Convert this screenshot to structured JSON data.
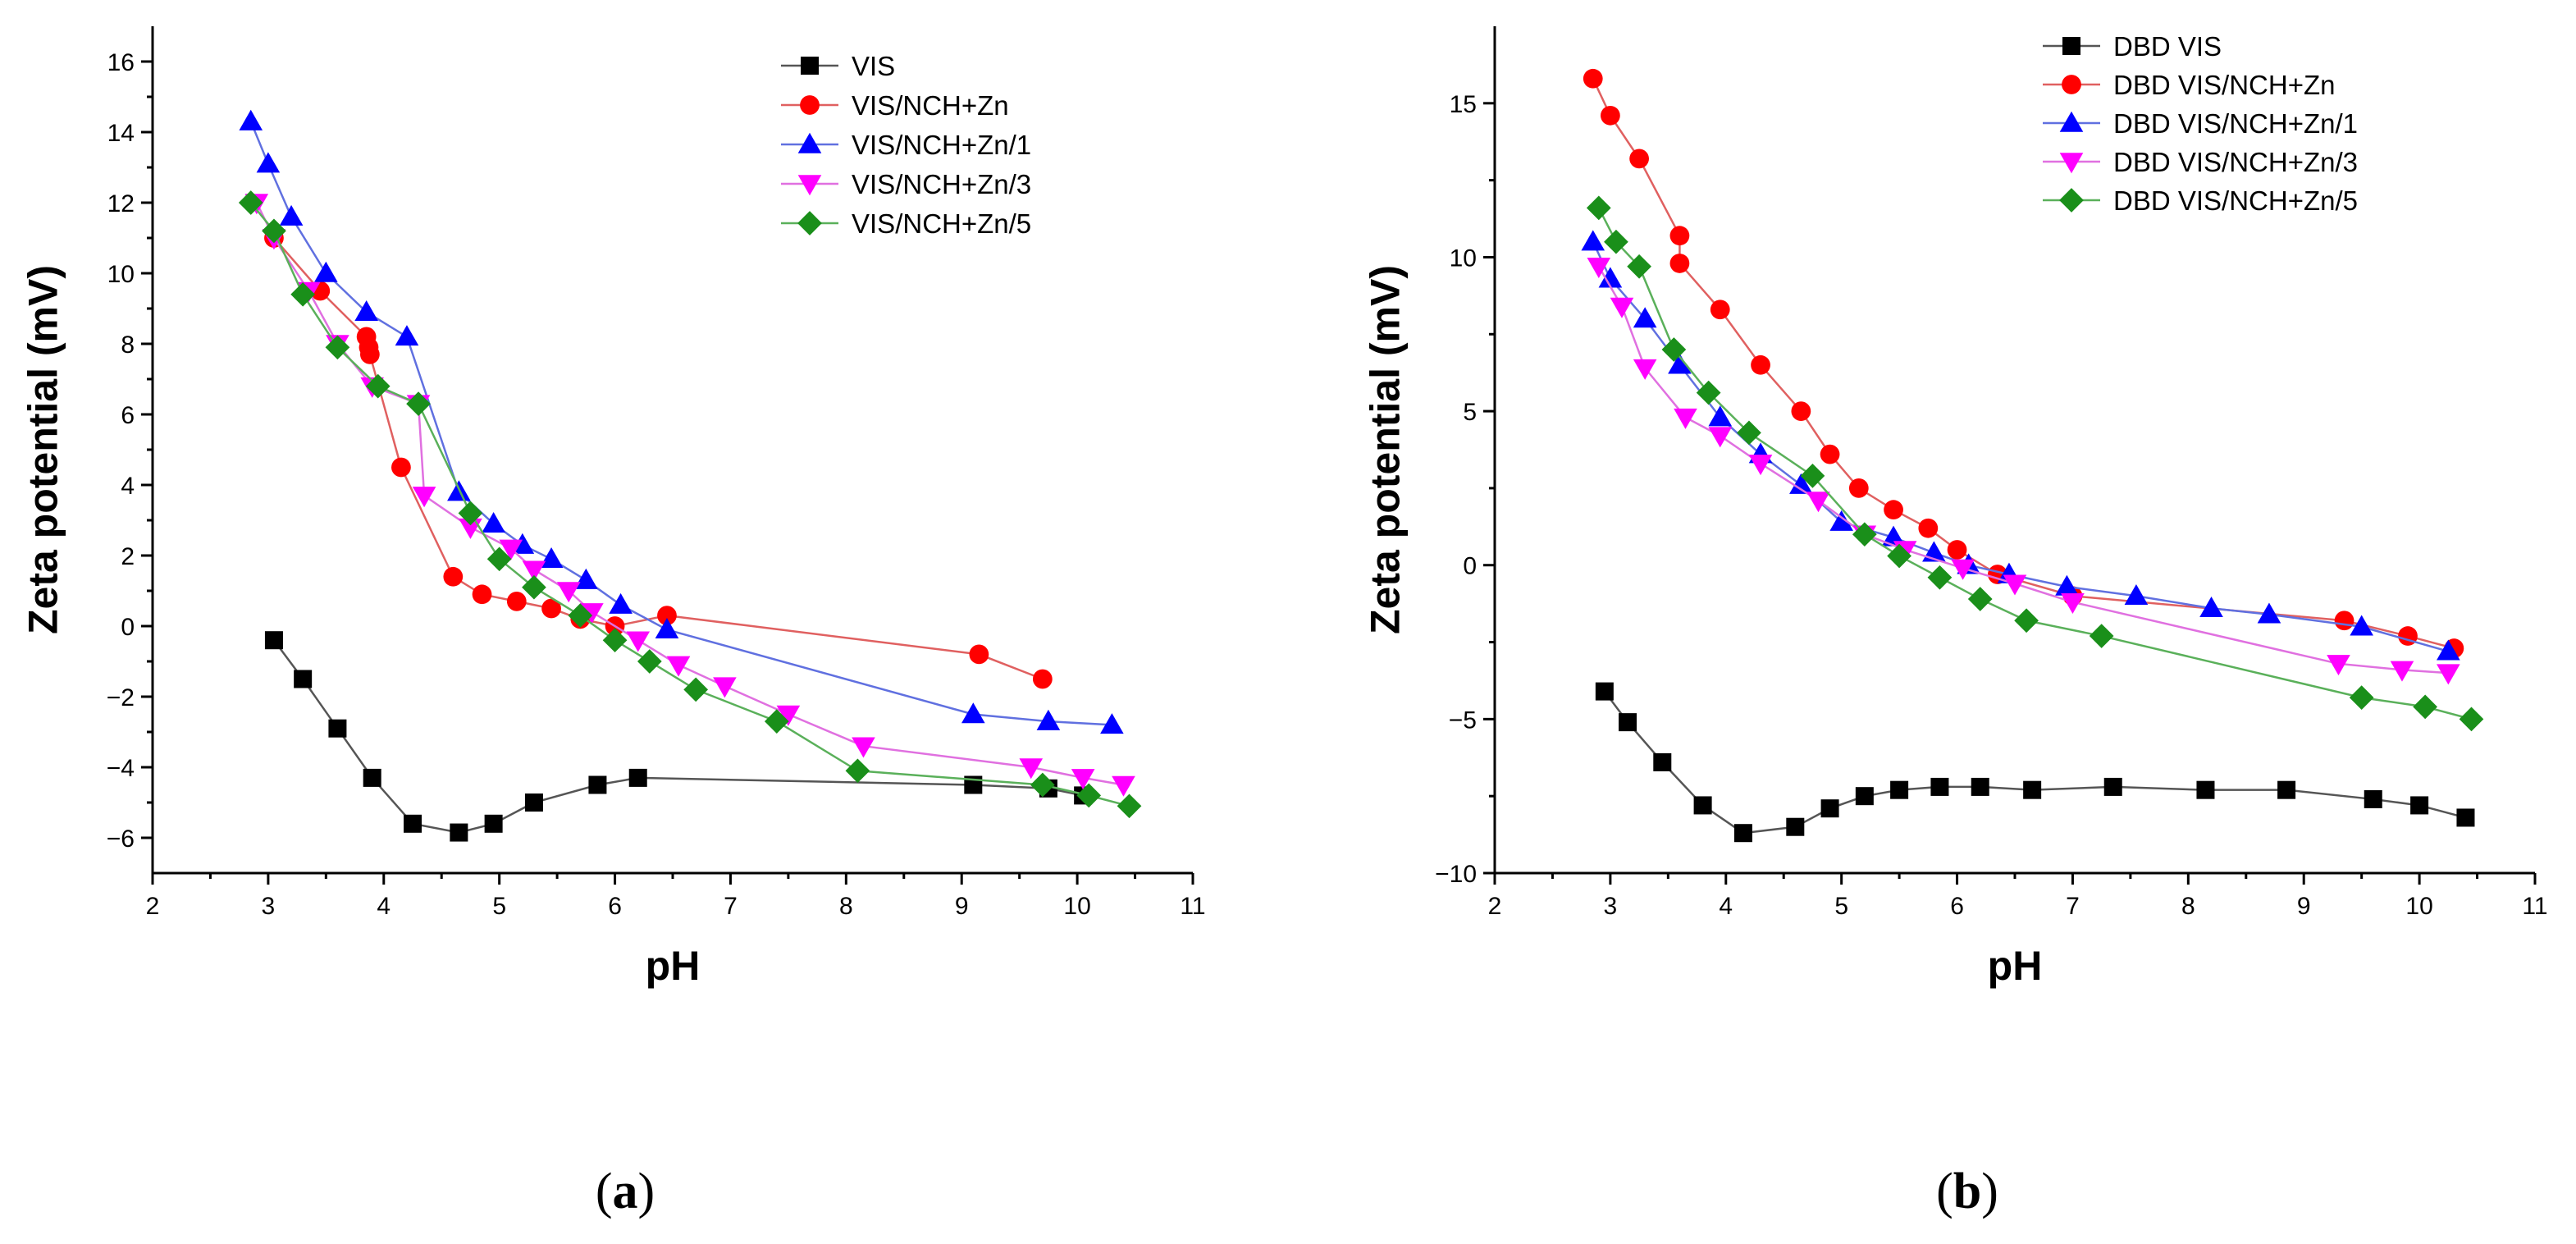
{
  "chart_data": [
    {
      "type": "line",
      "panel_label": {
        "open": "(",
        "letter": "a",
        "close": ")"
      },
      "xlabel": "pH",
      "ylabel": "Zeta potential (mV)",
      "xlim": [
        2,
        11
      ],
      "ylim": [
        -7,
        17
      ],
      "xticks": [
        2,
        3,
        4,
        5,
        6,
        7,
        8,
        9,
        10,
        11
      ],
      "yticks": [
        -6,
        -4,
        -2,
        0,
        2,
        4,
        6,
        8,
        10,
        12,
        14,
        16
      ],
      "legend_position": "top-right",
      "series": [
        {
          "name": "VIS",
          "color": "#000000",
          "line_color": "#555555",
          "marker": "square",
          "x": [
            3.05,
            3.3,
            3.6,
            3.9,
            4.25,
            4.65,
            4.95,
            5.3,
            5.85,
            6.2,
            9.1,
            9.75,
            10.05
          ],
          "y": [
            -0.4,
            -1.5,
            -2.9,
            -4.3,
            -5.6,
            -5.85,
            -5.6,
            -5.0,
            -4.5,
            -4.3,
            -4.5,
            -4.6,
            -4.8
          ]
        },
        {
          "name": "VIS/NCH+Zn",
          "color": "#ff0000",
          "line_color": "#e06060",
          "marker": "circle",
          "x": [
            3.05,
            3.45,
            3.85,
            3.87,
            3.88,
            4.15,
            4.6,
            4.85,
            5.15,
            5.45,
            5.7,
            6.0,
            6.45,
            9.15,
            9.7
          ],
          "y": [
            11.0,
            9.5,
            8.2,
            7.9,
            7.7,
            4.5,
            1.4,
            0.9,
            0.7,
            0.5,
            0.2,
            0.0,
            0.3,
            -0.8,
            -1.5
          ]
        },
        {
          "name": "VIS/NCH+Zn/1",
          "color": "#0000ff",
          "line_color": "#6070e0",
          "marker": "triangle-up",
          "x": [
            2.85,
            3.0,
            3.2,
            3.5,
            3.85,
            4.2,
            4.65,
            4.95,
            5.2,
            5.45,
            5.75,
            6.05,
            6.45,
            9.1,
            9.75,
            10.3
          ],
          "y": [
            14.3,
            13.1,
            11.6,
            10.0,
            8.9,
            8.2,
            3.8,
            2.9,
            2.3,
            1.9,
            1.3,
            0.6,
            -0.1,
            -2.5,
            -2.7,
            -2.8
          ]
        },
        {
          "name": "VIS/NCH+Zn/3",
          "color": "#ff00ff",
          "line_color": "#e070e0",
          "marker": "triangle-down",
          "x": [
            2.9,
            3.05,
            3.35,
            3.6,
            3.9,
            4.3,
            4.35,
            4.75,
            5.1,
            5.3,
            5.6,
            5.8,
            6.2,
            6.55,
            6.95,
            7.5,
            8.15,
            9.6,
            10.05,
            10.4
          ],
          "y": [
            12.0,
            11.0,
            9.5,
            8.0,
            6.8,
            6.3,
            3.7,
            2.8,
            2.2,
            1.6,
            1.0,
            0.4,
            -0.4,
            -1.1,
            -1.7,
            -2.5,
            -3.4,
            -4.0,
            -4.3,
            -4.5
          ]
        },
        {
          "name": "VIS/NCH+Zn/5",
          "color": "#1a8f1a",
          "line_color": "#5ab05a",
          "marker": "diamond",
          "x": [
            2.85,
            3.05,
            3.3,
            3.6,
            3.95,
            4.3,
            4.75,
            5.0,
            5.3,
            5.7,
            6.0,
            6.3,
            6.7,
            7.4,
            8.1,
            9.7,
            10.1,
            10.45
          ],
          "y": [
            12.0,
            11.2,
            9.4,
            7.9,
            6.8,
            6.3,
            3.2,
            1.9,
            1.1,
            0.3,
            -0.4,
            -1.0,
            -1.8,
            -2.7,
            -4.1,
            -4.5,
            -4.8,
            -5.1
          ]
        }
      ]
    },
    {
      "type": "line",
      "panel_label": {
        "open": "(",
        "letter": "b",
        "close": ")"
      },
      "xlabel": "pH",
      "ylabel": "Zeta potential (mV)",
      "xlim": [
        2,
        11
      ],
      "ylim": [
        -10,
        17.5
      ],
      "xticks": [
        2,
        3,
        4,
        5,
        6,
        7,
        8,
        9,
        10,
        11
      ],
      "yticks": [
        -10,
        -5,
        0,
        5,
        10,
        15
      ],
      "legend_position": "top-right",
      "series": [
        {
          "name": "DBD VIS",
          "color": "#000000",
          "line_color": "#555555",
          "marker": "square",
          "x": [
            2.95,
            3.15,
            3.45,
            3.8,
            4.15,
            4.6,
            4.9,
            5.2,
            5.5,
            5.85,
            6.2,
            6.65,
            7.35,
            8.15,
            8.85,
            9.6,
            10.0,
            10.4
          ],
          "y": [
            -4.1,
            -5.1,
            -6.4,
            -7.8,
            -8.7,
            -8.5,
            -7.9,
            -7.5,
            -7.3,
            -7.2,
            -7.2,
            -7.3,
            -7.2,
            -7.3,
            -7.3,
            -7.6,
            -7.8,
            -8.2
          ]
        },
        {
          "name": "DBD VIS/NCH+Zn",
          "color": "#ff0000",
          "line_color": "#e06060",
          "marker": "circle",
          "x": [
            2.85,
            3.0,
            3.25,
            3.6,
            3.6,
            3.95,
            4.3,
            4.65,
            4.9,
            5.15,
            5.45,
            5.75,
            6.0,
            6.35,
            7.0,
            9.35,
            9.9,
            10.3
          ],
          "y": [
            15.8,
            14.6,
            13.2,
            10.7,
            9.8,
            8.3,
            6.5,
            5.0,
            3.6,
            2.5,
            1.8,
            1.2,
            0.5,
            -0.3,
            -1.0,
            -1.8,
            -2.3,
            -2.7
          ]
        },
        {
          "name": "DBD VIS/NCH+Zn/1",
          "color": "#0000ff",
          "line_color": "#6070e0",
          "marker": "triangle-up",
          "x": [
            2.85,
            3.0,
            3.3,
            3.6,
            3.95,
            4.3,
            4.65,
            5.0,
            5.45,
            5.8,
            6.1,
            6.45,
            6.95,
            7.55,
            8.2,
            8.7,
            9.5,
            10.25
          ],
          "y": [
            10.5,
            9.3,
            8.0,
            6.5,
            4.8,
            3.6,
            2.6,
            1.4,
            0.9,
            0.4,
            0.0,
            -0.3,
            -0.7,
            -1.0,
            -1.4,
            -1.6,
            -2.0,
            -2.8
          ]
        },
        {
          "name": "DBD VIS/NCH+Zn/3",
          "color": "#ff00ff",
          "line_color": "#e070e0",
          "marker": "triangle-down",
          "x": [
            2.9,
            3.1,
            3.3,
            3.65,
            3.95,
            4.3,
            4.8,
            5.2,
            5.55,
            6.05,
            6.5,
            7.0,
            9.3,
            9.85,
            10.25
          ],
          "y": [
            9.7,
            8.4,
            6.4,
            4.8,
            4.2,
            3.3,
            2.1,
            1.0,
            0.5,
            -0.1,
            -0.6,
            -1.2,
            -3.2,
            -3.4,
            -3.5
          ]
        },
        {
          "name": "DBD VIS/NCH+Zn/5",
          "color": "#1a8f1a",
          "line_color": "#5ab05a",
          "marker": "diamond",
          "x": [
            2.9,
            3.05,
            3.25,
            3.55,
            3.85,
            4.2,
            4.75,
            5.2,
            5.5,
            5.85,
            6.2,
            6.6,
            7.25,
            9.5,
            10.05,
            10.45
          ],
          "y": [
            11.6,
            10.5,
            9.7,
            7.0,
            5.6,
            4.3,
            2.9,
            1.0,
            0.3,
            -0.4,
            -1.1,
            -1.8,
            -2.3,
            -4.3,
            -4.6,
            -5.0
          ]
        }
      ]
    }
  ]
}
